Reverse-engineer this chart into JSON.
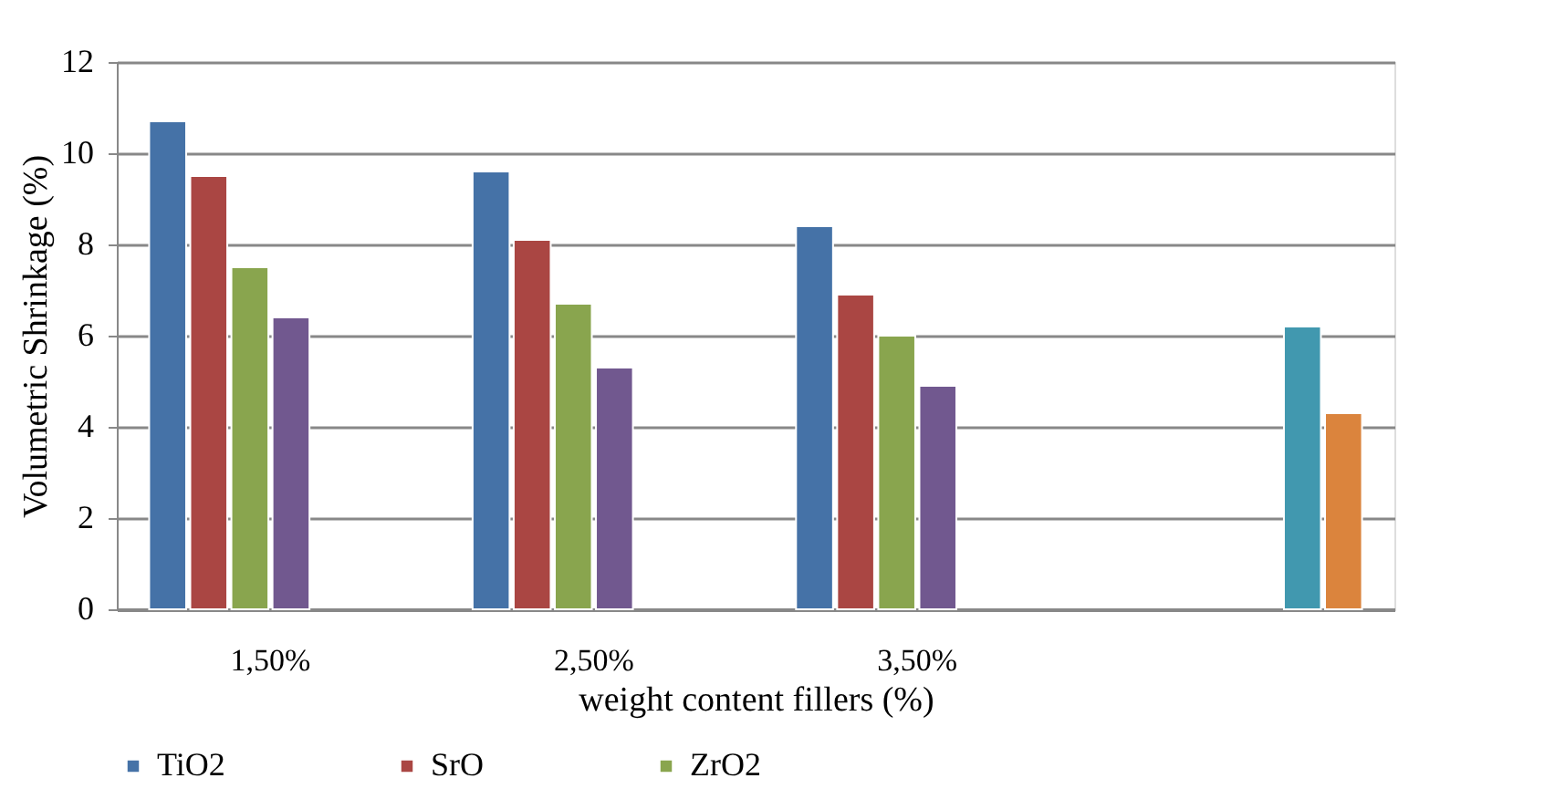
{
  "chart_data": {
    "type": "bar",
    "xlabel": "weight content fillers (%)",
    "ylabel": "Volumetric Shrinkage (%)",
    "categories": [
      "1,50%",
      "2,50%",
      "3,50%",
      null
    ],
    "series": [
      {
        "name": "TiO2",
        "color": "#4572a7",
        "values": [
          10.7,
          9.6,
          8.4,
          null
        ]
      },
      {
        "name": "SrO",
        "color": "#aa4643",
        "values": [
          9.5,
          8.1,
          6.9,
          null
        ]
      },
      {
        "name": "ZrO2",
        "color": "#89a54e",
        "values": [
          7.5,
          6.7,
          6.0,
          null
        ]
      },
      {
        "color": "#71588f",
        "values": [
          6.4,
          5.3,
          4.9,
          null
        ]
      },
      {
        "color": "#4198af",
        "values": [
          null,
          null,
          null,
          6.2
        ]
      },
      {
        "color": "#db843d",
        "values": [
          null,
          null,
          null,
          4.3
        ]
      }
    ],
    "ylim": [
      0,
      12
    ],
    "yticks": [
      0,
      2,
      4,
      6,
      8,
      10,
      12
    ],
    "grid": "y",
    "legend": "bottom"
  }
}
